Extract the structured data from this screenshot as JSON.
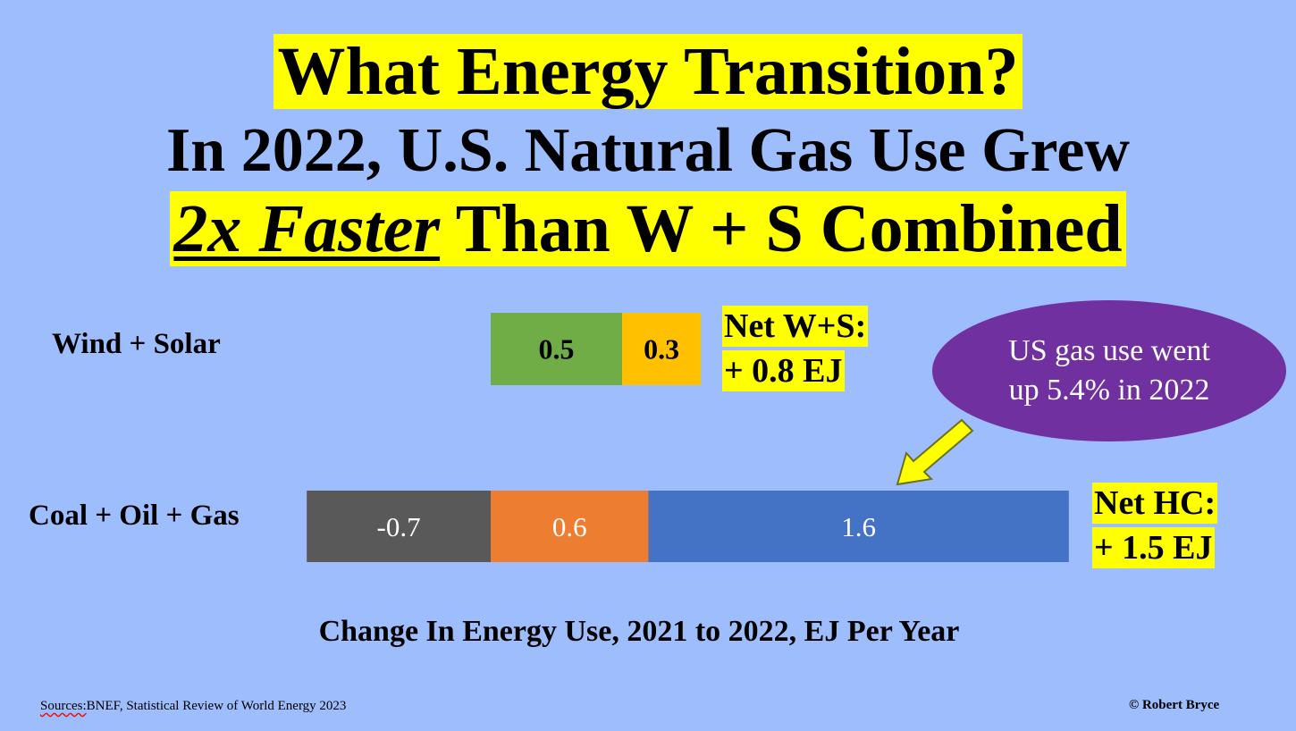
{
  "title": {
    "line1": "What Energy Transition?",
    "line2": "In 2022, U.S. Natural Gas Use Grew",
    "line3_emphasis": "2x Faster",
    "line3_rest": " Than W + S Combined"
  },
  "chart_data": {
    "type": "bar",
    "orientation": "horizontal",
    "stacked": true,
    "categories": [
      "Wind + Solar",
      "Coal + Oil + Gas"
    ],
    "rows": [
      {
        "label": "Wind + Solar",
        "segments": [
          {
            "value": 0.5,
            "label": "0.5",
            "color": "#70ad47"
          },
          {
            "value": 0.3,
            "label": "0.3",
            "color": "#ffc000"
          }
        ],
        "net_label_line1": "Net W+S:",
        "net_label_line2": "+ 0.8 EJ"
      },
      {
        "label": "Coal + Oil + Gas",
        "segments": [
          {
            "value": -0.7,
            "label": "-0.7",
            "color": "#595959"
          },
          {
            "value": 0.6,
            "label": "0.6",
            "color": "#ed7d31"
          },
          {
            "value": 1.6,
            "label": "1.6",
            "color": "#4472c4"
          }
        ],
        "net_label_line1": "Net HC:",
        "net_label_line2": "+ 1.5 EJ"
      }
    ],
    "xlabel": "Change In Energy Use, 2021 to 2022, EJ Per Year",
    "grid": false,
    "legend": "none",
    "annotation": "US gas use went up 5.4% in 2022"
  },
  "callout": {
    "line1": "US gas use went",
    "line2": "up 5.4% in 2022"
  },
  "footer": {
    "sources_prefix": "Sources:",
    "sources_rest": "BNEF, Statistical Review of World Energy 2023",
    "copyright": "© Robert Bryce"
  },
  "colors": {
    "background": "#9dbdfc",
    "highlight": "#ffff00",
    "callout": "#7030a0",
    "arrow": "#ffff00"
  }
}
